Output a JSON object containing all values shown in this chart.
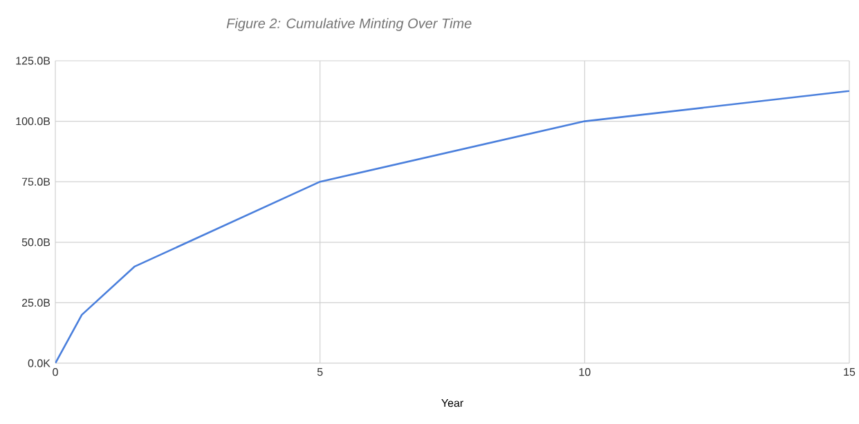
{
  "chart_data": {
    "type": "line",
    "title": "Figure 2: Cumulative Minting Over Time",
    "xlabel": "Year",
    "x": [
      0,
      0.5,
      1.5,
      5,
      10,
      15
    ],
    "series": [
      {
        "color": "#4a7fdc",
        "values": [
          0,
          20,
          40,
          75,
          100,
          112.5
        ]
      }
    ],
    "xlim": [
      0,
      15
    ],
    "xticks": [
      0,
      5,
      10,
      15
    ],
    "ylim": [
      0,
      125
    ],
    "yticks": [
      {
        "value": 0,
        "label": "0.0K"
      },
      {
        "value": 25,
        "label": "25.0B"
      },
      {
        "value": 50,
        "label": "50.0B"
      },
      {
        "value": 75,
        "label": "75.0B"
      },
      {
        "value": 100,
        "label": "100.0B"
      },
      {
        "value": 125,
        "label": "125.0B"
      }
    ],
    "grid": true,
    "marker": "none",
    "line_style": "solid"
  }
}
